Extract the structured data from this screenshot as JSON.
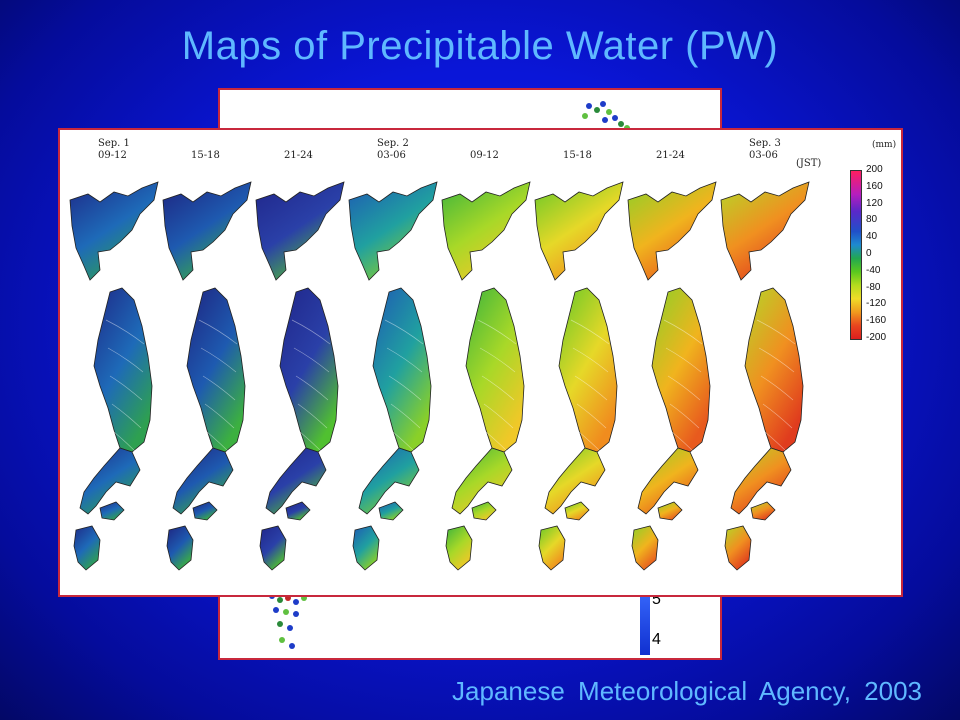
{
  "title": "Maps of Precipitable Water (PW)",
  "credit": "Japanese Meteorological Agency, 2003",
  "back_panel": {
    "scale_ticks": [
      "5",
      "4"
    ]
  },
  "front_panel": {
    "maps": [
      {
        "date": "Sep. 1",
        "time": "09-12",
        "fill": "#1e2a88",
        "mid": "#1e6ab8",
        "low": "#2ea050"
      },
      {
        "date": "",
        "time": "15-18",
        "fill": "#1e2480",
        "mid": "#1e5ab0",
        "low": "#3cb040"
      },
      {
        "date": "",
        "time": "21-24",
        "fill": "#20268a",
        "mid": "#2a40a8",
        "low": "#50c030"
      },
      {
        "date": "Sep. 2",
        "time": "03-06",
        "fill": "#1e5ab4",
        "mid": "#20a0a0",
        "low": "#8ad028"
      },
      {
        "date": "",
        "time": "09-12",
        "fill": "#3cb43c",
        "mid": "#a8d828",
        "low": "#f0c828"
      },
      {
        "date": "",
        "time": "15-18",
        "fill": "#66c828",
        "mid": "#e6d828",
        "low": "#f08c1e"
      },
      {
        "date": "",
        "time": "21-24",
        "fill": "#8cd028",
        "mid": "#f0b41e",
        "low": "#e85a1e"
      },
      {
        "date": "Sep. 3",
        "time": "03-06",
        "fill": "#b4d828",
        "mid": "#f09020",
        "low": "#e03c1e"
      }
    ],
    "jst_label": "(JST)",
    "unit_label": "(mm)",
    "colorbar_ticks": [
      "200",
      "160",
      "120",
      "80",
      "40",
      "0",
      "-40",
      "-80",
      "-120",
      "-160",
      "-200"
    ]
  }
}
